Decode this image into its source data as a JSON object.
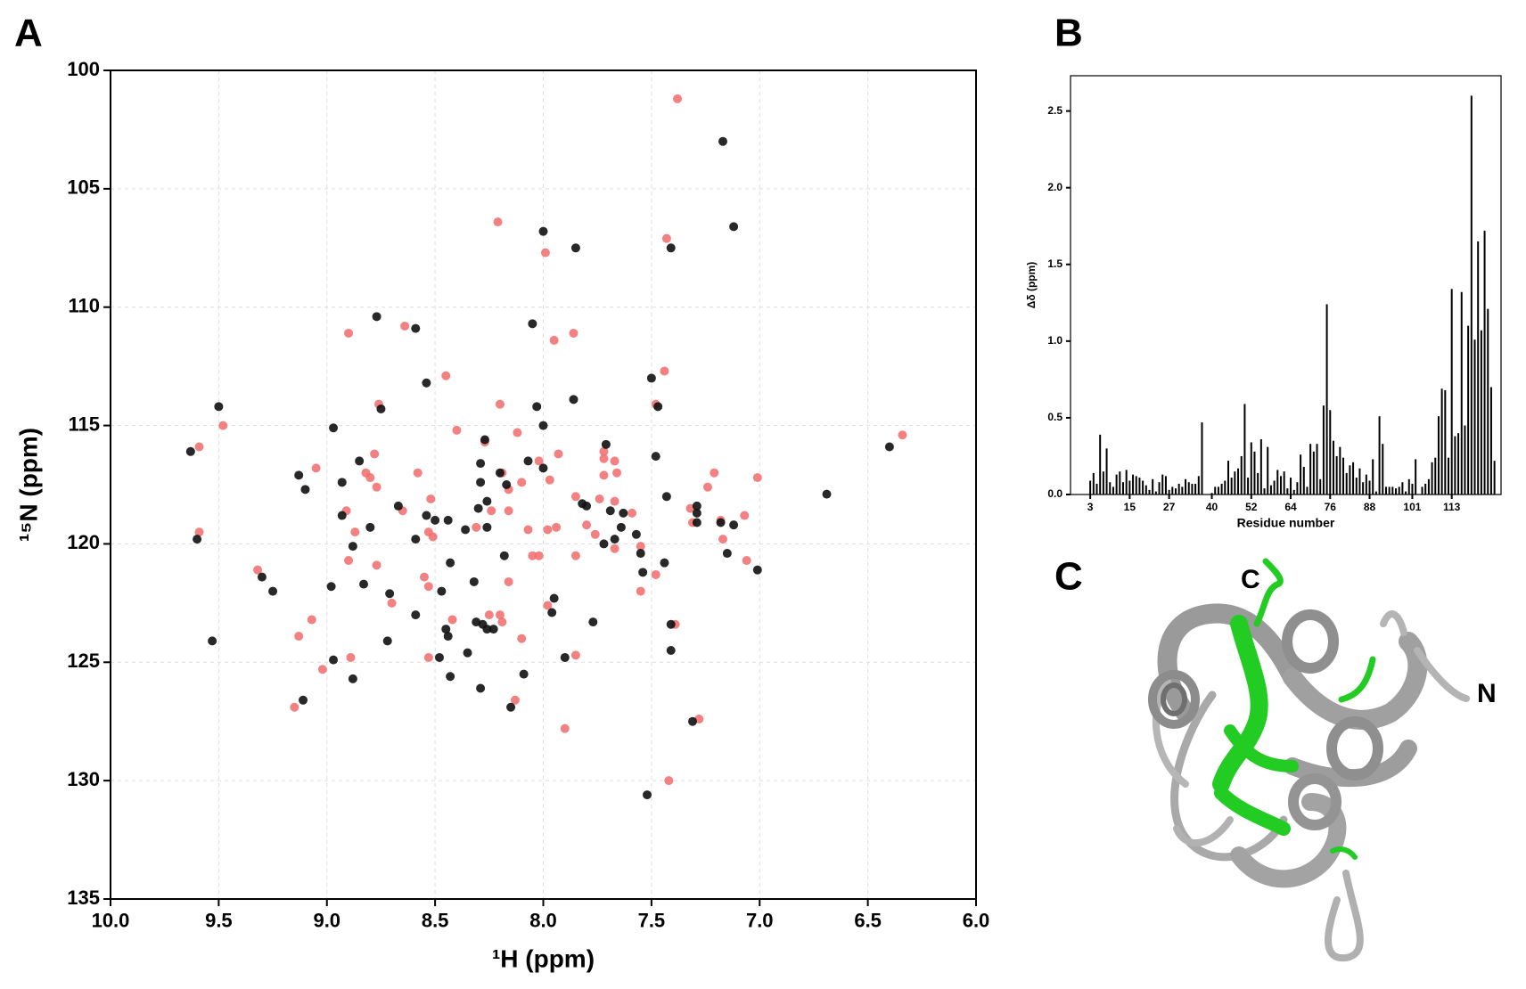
{
  "panels": {
    "a": "A",
    "b": "B",
    "c": "C",
    "c_terminus": "C",
    "n_terminus": "N"
  },
  "chart_data": [
    {
      "type": "scatter",
      "xlabel": "¹H (ppm)",
      "ylabel": "¹⁵N (ppm)",
      "xlim": [
        10,
        6
      ],
      "ylim": [
        135,
        100
      ],
      "xticks": [
        {
          "value": 10,
          "label": "10.0"
        },
        {
          "value": 9.5,
          "label": "9.5"
        },
        {
          "value": 9,
          "label": "9.0"
        },
        {
          "value": 8.5,
          "label": "8.5"
        },
        {
          "value": 8,
          "label": "8.0"
        },
        {
          "value": 7.5,
          "label": "7.5"
        },
        {
          "value": 7,
          "label": "7.0"
        },
        {
          "value": 6.5,
          "label": "6.5"
        },
        {
          "value": 6,
          "label": "6.0"
        }
      ],
      "yticks": [
        100,
        105,
        110,
        115,
        120,
        125,
        130,
        135
      ],
      "grid": true,
      "series": [
        {
          "color": "#f26b6b",
          "x": [
            7.38,
            8.21,
            7.43,
            7.99,
            8.9,
            8.64,
            7.95,
            7.86,
            8.45,
            7.44,
            8.76,
            8.2,
            7.48,
            9.48,
            8.4,
            8.12,
            6.34,
            9.59,
            8.27,
            7.72,
            8.78,
            7.93,
            7.72,
            7.67,
            8.02,
            9.05,
            8.82,
            8.8,
            8.58,
            8.19,
            7.21,
            7.01,
            7.97,
            7.72,
            7.66,
            8.77,
            8.16,
            8.1,
            7.85,
            7.74,
            7.67,
            7.24,
            8.52,
            8.91,
            8.24,
            8.16,
            8.65,
            7.59,
            7.32,
            7.07,
            7.18,
            7.31,
            8.87,
            8.53,
            8.31,
            8.07,
            7.98,
            7.94,
            7.8,
            7.76,
            9.59,
            7.17,
            8.51,
            7.67,
            7.55,
            8.05,
            8.02,
            7.85,
            7.06,
            8.77,
            8.9,
            9.32,
            8.55,
            7.48,
            8.16,
            8.53,
            7.55,
            8.7,
            7.98,
            9.07,
            8.42,
            8.25,
            8.2,
            8.19,
            7.39,
            9.13,
            8.1,
            8.89,
            8.53,
            7.85,
            9.02,
            8.13,
            9.15,
            7.28,
            7.9,
            7.42
          ],
          "y": [
            101.2,
            106.4,
            107.1,
            107.7,
            111.1,
            110.8,
            111.4,
            111.1,
            112.9,
            112.7,
            114.1,
            114.1,
            114.1,
            115.0,
            115.2,
            115.3,
            115.4,
            115.9,
            115.7,
            116.1,
            116.2,
            116.2,
            116.4,
            116.5,
            116.5,
            116.8,
            117.0,
            117.2,
            117.0,
            117.0,
            117.0,
            117.2,
            117.3,
            117.1,
            117.0,
            117.6,
            117.7,
            117.4,
            118.0,
            118.1,
            118.2,
            117.6,
            118.1,
            118.6,
            118.6,
            118.6,
            118.6,
            118.7,
            118.5,
            118.8,
            119.0,
            119.1,
            119.5,
            119.5,
            119.3,
            119.4,
            119.4,
            119.3,
            119.2,
            119.6,
            119.5,
            119.8,
            119.7,
            120.2,
            120.1,
            120.5,
            120.5,
            120.5,
            120.7,
            120.9,
            120.7,
            121.1,
            121.4,
            121.3,
            121.6,
            121.8,
            122.0,
            122.5,
            122.6,
            123.2,
            123.2,
            123.0,
            123.0,
            123.3,
            123.4,
            123.9,
            124.0,
            124.8,
            124.8,
            124.7,
            125.3,
            126.6,
            126.9,
            127.4,
            127.8,
            130.0
          ]
        },
        {
          "color": "#111111",
          "x": [
            7.17,
            7.12,
            8.0,
            7.85,
            7.41,
            8.77,
            8.59,
            8.05,
            8.54,
            7.5,
            9.5,
            8.75,
            7.86,
            7.47,
            8.97,
            8.0,
            8.03,
            9.63,
            8.27,
            7.71,
            7.48,
            6.4,
            8.85,
            8.07,
            9.13,
            8.29,
            8.2,
            9.1,
            8.93,
            8.29,
            8.17,
            8.0,
            7.8,
            7.43,
            6.69,
            8.67,
            8.26,
            7.82,
            7.69,
            7.63,
            7.29,
            7.29,
            7.29,
            8.93,
            8.54,
            8.5,
            8.44,
            8.36,
            8.3,
            8.26,
            8.88,
            8.8,
            8.59,
            9.6,
            7.64,
            7.57,
            7.72,
            7.67,
            7.12,
            7.18,
            7.15,
            7.55,
            8.18,
            8.43,
            7.44,
            7.01,
            7.54,
            9.3,
            8.98,
            8.83,
            8.32,
            9.25,
            8.71,
            8.47,
            7.95,
            8.59,
            8.31,
            8.28,
            7.77,
            8.45,
            8.26,
            8.23,
            7.96,
            8.44,
            7.41,
            8.72,
            9.53,
            8.35,
            7.41,
            8.97,
            8.48,
            7.9,
            8.09,
            8.88,
            8.43,
            9.11,
            8.29,
            8.15,
            7.31,
            7.52
          ],
          "y": [
            103.0,
            106.6,
            106.8,
            107.5,
            107.5,
            110.4,
            110.9,
            110.7,
            113.2,
            113.0,
            114.2,
            114.3,
            113.9,
            114.2,
            115.1,
            115.0,
            114.2,
            116.1,
            115.6,
            115.8,
            116.3,
            115.9,
            116.5,
            116.5,
            117.1,
            116.6,
            117.0,
            117.7,
            117.4,
            117.4,
            117.5,
            116.8,
            118.4,
            118.0,
            117.9,
            118.4,
            118.2,
            118.3,
            118.6,
            118.7,
            118.4,
            118.7,
            119.1,
            118.8,
            118.8,
            119.0,
            119.0,
            119.4,
            118.5,
            119.3,
            120.1,
            119.3,
            119.8,
            119.8,
            119.3,
            119.6,
            120.0,
            119.8,
            119.2,
            119.1,
            120.4,
            120.4,
            120.5,
            120.8,
            120.8,
            121.1,
            121.2,
            121.4,
            121.8,
            121.7,
            121.6,
            122.0,
            122.1,
            122.0,
            122.3,
            123.0,
            123.3,
            123.4,
            123.3,
            123.6,
            123.6,
            123.6,
            122.9,
            123.9,
            123.4,
            124.1,
            124.1,
            124.6,
            124.5,
            124.9,
            124.8,
            124.8,
            125.5,
            125.7,
            125.6,
            126.6,
            126.1,
            126.9,
            127.5,
            130.6
          ]
        }
      ]
    },
    {
      "type": "bar",
      "xlabel": "Residue number",
      "ylabel": "Δδ (ppm)",
      "color": "#000000",
      "xlim": [
        -3,
        128
      ],
      "ylim": [
        0,
        2.73
      ],
      "xticks": [
        3,
        15,
        27,
        40,
        52,
        64,
        76,
        88,
        101,
        113
      ],
      "yticks": [
        {
          "value": 0,
          "label": "0.0"
        },
        0.5,
        {
          "value": 1,
          "label": "1.0"
        },
        1.5,
        {
          "value": 2,
          "label": "2.0"
        },
        2.5
      ],
      "x": [
        1,
        2,
        3,
        4,
        5,
        6,
        7,
        8,
        9,
        10,
        11,
        12,
        13,
        14,
        15,
        16,
        17,
        18,
        19,
        20,
        21,
        22,
        23,
        24,
        25,
        26,
        27,
        28,
        29,
        30,
        31,
        32,
        33,
        34,
        35,
        36,
        37,
        38,
        39,
        40,
        41,
        42,
        43,
        44,
        45,
        46,
        47,
        48,
        49,
        50,
        51,
        52,
        53,
        54,
        55,
        56,
        57,
        58,
        59,
        60,
        61,
        62,
        63,
        64,
        65,
        66,
        67,
        68,
        69,
        70,
        71,
        72,
        73,
        74,
        75,
        76,
        77,
        78,
        79,
        80,
        81,
        82,
        83,
        84,
        85,
        86,
        87,
        88,
        89,
        90,
        91,
        92,
        93,
        94,
        95,
        96,
        97,
        98,
        99,
        100,
        101,
        102,
        103,
        104,
        105,
        106,
        107,
        108,
        109,
        110,
        111,
        112,
        113,
        114,
        115,
        116,
        117,
        118,
        119,
        120,
        121,
        122,
        123,
        124,
        125,
        126
      ],
      "values": [
        0,
        0,
        0.09,
        0.14,
        0.07,
        0.39,
        0.15,
        0.3,
        0.08,
        0.05,
        0.13,
        0.15,
        0.08,
        0.16,
        0.09,
        0.13,
        0.12,
        0.11,
        0.09,
        0.06,
        0.03,
        0.1,
        0.02,
        0.08,
        0.13,
        0.12,
        0.03,
        0.05,
        0.04,
        0.07,
        0.05,
        0.1,
        0.08,
        0.07,
        0.07,
        0.12,
        0.47,
        0,
        0,
        0.01,
        0.05,
        0.05,
        0.07,
        0.09,
        0.22,
        0.11,
        0.15,
        0.17,
        0.25,
        0.59,
        0.11,
        0.34,
        0.28,
        0.14,
        0.36,
        0.04,
        0.31,
        0.06,
        0.09,
        0.16,
        0.12,
        0.15,
        0.04,
        0.11,
        0.03,
        0.08,
        0.26,
        0.18,
        0.05,
        0.33,
        0.28,
        0.33,
        0.1,
        0.58,
        1.24,
        0.55,
        0.35,
        0.25,
        0.31,
        0.24,
        0.14,
        0.19,
        0.21,
        0.11,
        0.17,
        0.08,
        0.13,
        0.09,
        0.23,
        0.02,
        0.51,
        0.33,
        0.05,
        0.05,
        0.05,
        0.04,
        0.05,
        0.08,
        0.02,
        0.1,
        0.07,
        0.23,
        0,
        0.05,
        0.07,
        0.1,
        0.21,
        0.24,
        0.51,
        0.69,
        0.68,
        0.24,
        1.34,
        0.38,
        0.4,
        1.32,
        0.45,
        1.1,
        2.6,
        1.01,
        1.65,
        1.07,
        1.72,
        1.21,
        0.7,
        0.22
      ]
    }
  ]
}
